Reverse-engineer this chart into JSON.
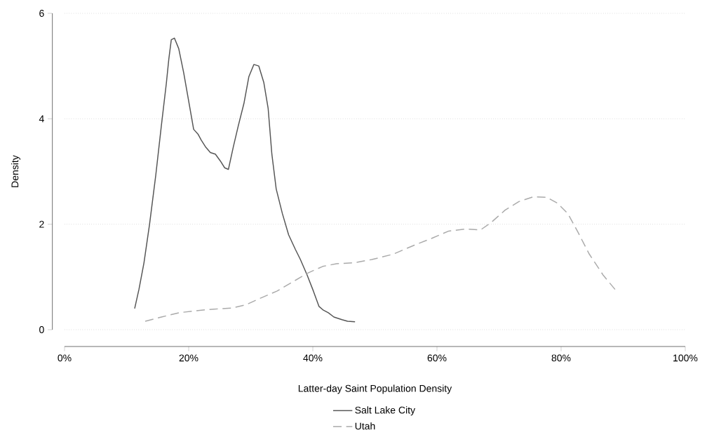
{
  "chart_data": {
    "type": "line",
    "xlabel": "Latter-day Saint Population Density",
    "ylabel": "Density",
    "xlim": [
      0,
      100
    ],
    "ylim": [
      0,
      6
    ],
    "xticks": [
      {
        "value": 0,
        "label": "0%"
      },
      {
        "value": 20,
        "label": "20%"
      },
      {
        "value": 40,
        "label": "40%"
      },
      {
        "value": 60,
        "label": "60%"
      },
      {
        "value": 80,
        "label": "80%"
      },
      {
        "value": 100,
        "label": "100%"
      }
    ],
    "yticks": [
      0,
      2,
      4,
      6
    ],
    "grid": "y",
    "legend": "bottom",
    "series": [
      {
        "name": "Salt Lake City",
        "color": "#555555",
        "line_style": "solid",
        "x": [
          11.3,
          12.0,
          12.8,
          13.7,
          14.7,
          15.6,
          16.4,
          16.8,
          17.2,
          17.7,
          18.4,
          19.2,
          20.1,
          20.8,
          21.5,
          22.0,
          22.7,
          23.5,
          24.3,
          25.1,
          25.8,
          26.4,
          27.2,
          28.0,
          28.9,
          29.7,
          30.5,
          31.3,
          32.1,
          32.8,
          33.4,
          34.1,
          35.1,
          36.1,
          37.2,
          38.0,
          39.1,
          40.1,
          41.0,
          41.7,
          42.5,
          43.4,
          44.7,
          45.6,
          46.8
        ],
        "values": [
          0.4,
          0.77,
          1.27,
          2.0,
          2.93,
          3.87,
          4.67,
          5.13,
          5.5,
          5.53,
          5.33,
          4.87,
          4.27,
          3.8,
          3.71,
          3.6,
          3.47,
          3.36,
          3.33,
          3.2,
          3.07,
          3.04,
          3.47,
          3.87,
          4.29,
          4.8,
          5.03,
          5.0,
          4.69,
          4.2,
          3.33,
          2.67,
          2.2,
          1.8,
          1.52,
          1.33,
          1.03,
          0.73,
          0.44,
          0.37,
          0.32,
          0.24,
          0.19,
          0.16,
          0.15
        ]
      },
      {
        "name": "Utah",
        "color": "#aaaaaa",
        "line_style": "dashed",
        "x": [
          13.0,
          15.6,
          18.4,
          21.2,
          24.1,
          26.9,
          29.2,
          31.4,
          34.2,
          37.1,
          39.3,
          41.6,
          43.8,
          46.7,
          49.5,
          52.9,
          56.3,
          59.1,
          61.9,
          64.7,
          67.0,
          68.7,
          71.0,
          73.2,
          75.5,
          77.7,
          79.4,
          81.1,
          82.8,
          84.5,
          86.8,
          89.0
        ],
        "values": [
          0.16,
          0.24,
          0.32,
          0.36,
          0.39,
          0.41,
          0.47,
          0.59,
          0.73,
          0.93,
          1.08,
          1.2,
          1.25,
          1.27,
          1.33,
          1.43,
          1.6,
          1.73,
          1.87,
          1.91,
          1.89,
          2.03,
          2.27,
          2.43,
          2.52,
          2.51,
          2.4,
          2.2,
          1.83,
          1.44,
          1.03,
          0.72
        ]
      }
    ]
  }
}
